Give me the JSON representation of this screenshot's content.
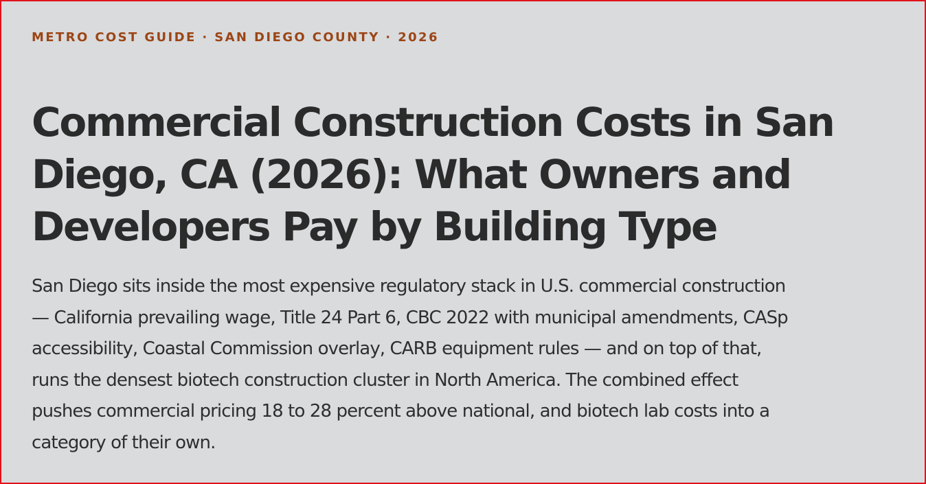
{
  "article": {
    "eyebrow": "METRO COST GUIDE · SAN DIEGO COUNTY · 2026",
    "title": "Commercial Construction Costs in San Diego, CA (2026): What Owners and Developers Pay by Building Type",
    "lede": "San Diego sits inside the most expensive regulatory stack in U.S. commercial construction — California prevailing wage, Title 24 Part 6, CBC 2022 with municipal amendments, CASp accessibility, Coastal Commission overlay, CARB equipment rules — and on top of that, runs the densest biotech construction cluster in North America. The combined effect pushes commercial pricing 18 to 28 percent above national, and biotech lab costs into a category of their own."
  },
  "colors": {
    "background": "#d9dbdd",
    "frame_border": "#e0121b",
    "eyebrow": "#9c4515",
    "heading": "#2b2b2b",
    "body_text": "#2e2e2e"
  }
}
